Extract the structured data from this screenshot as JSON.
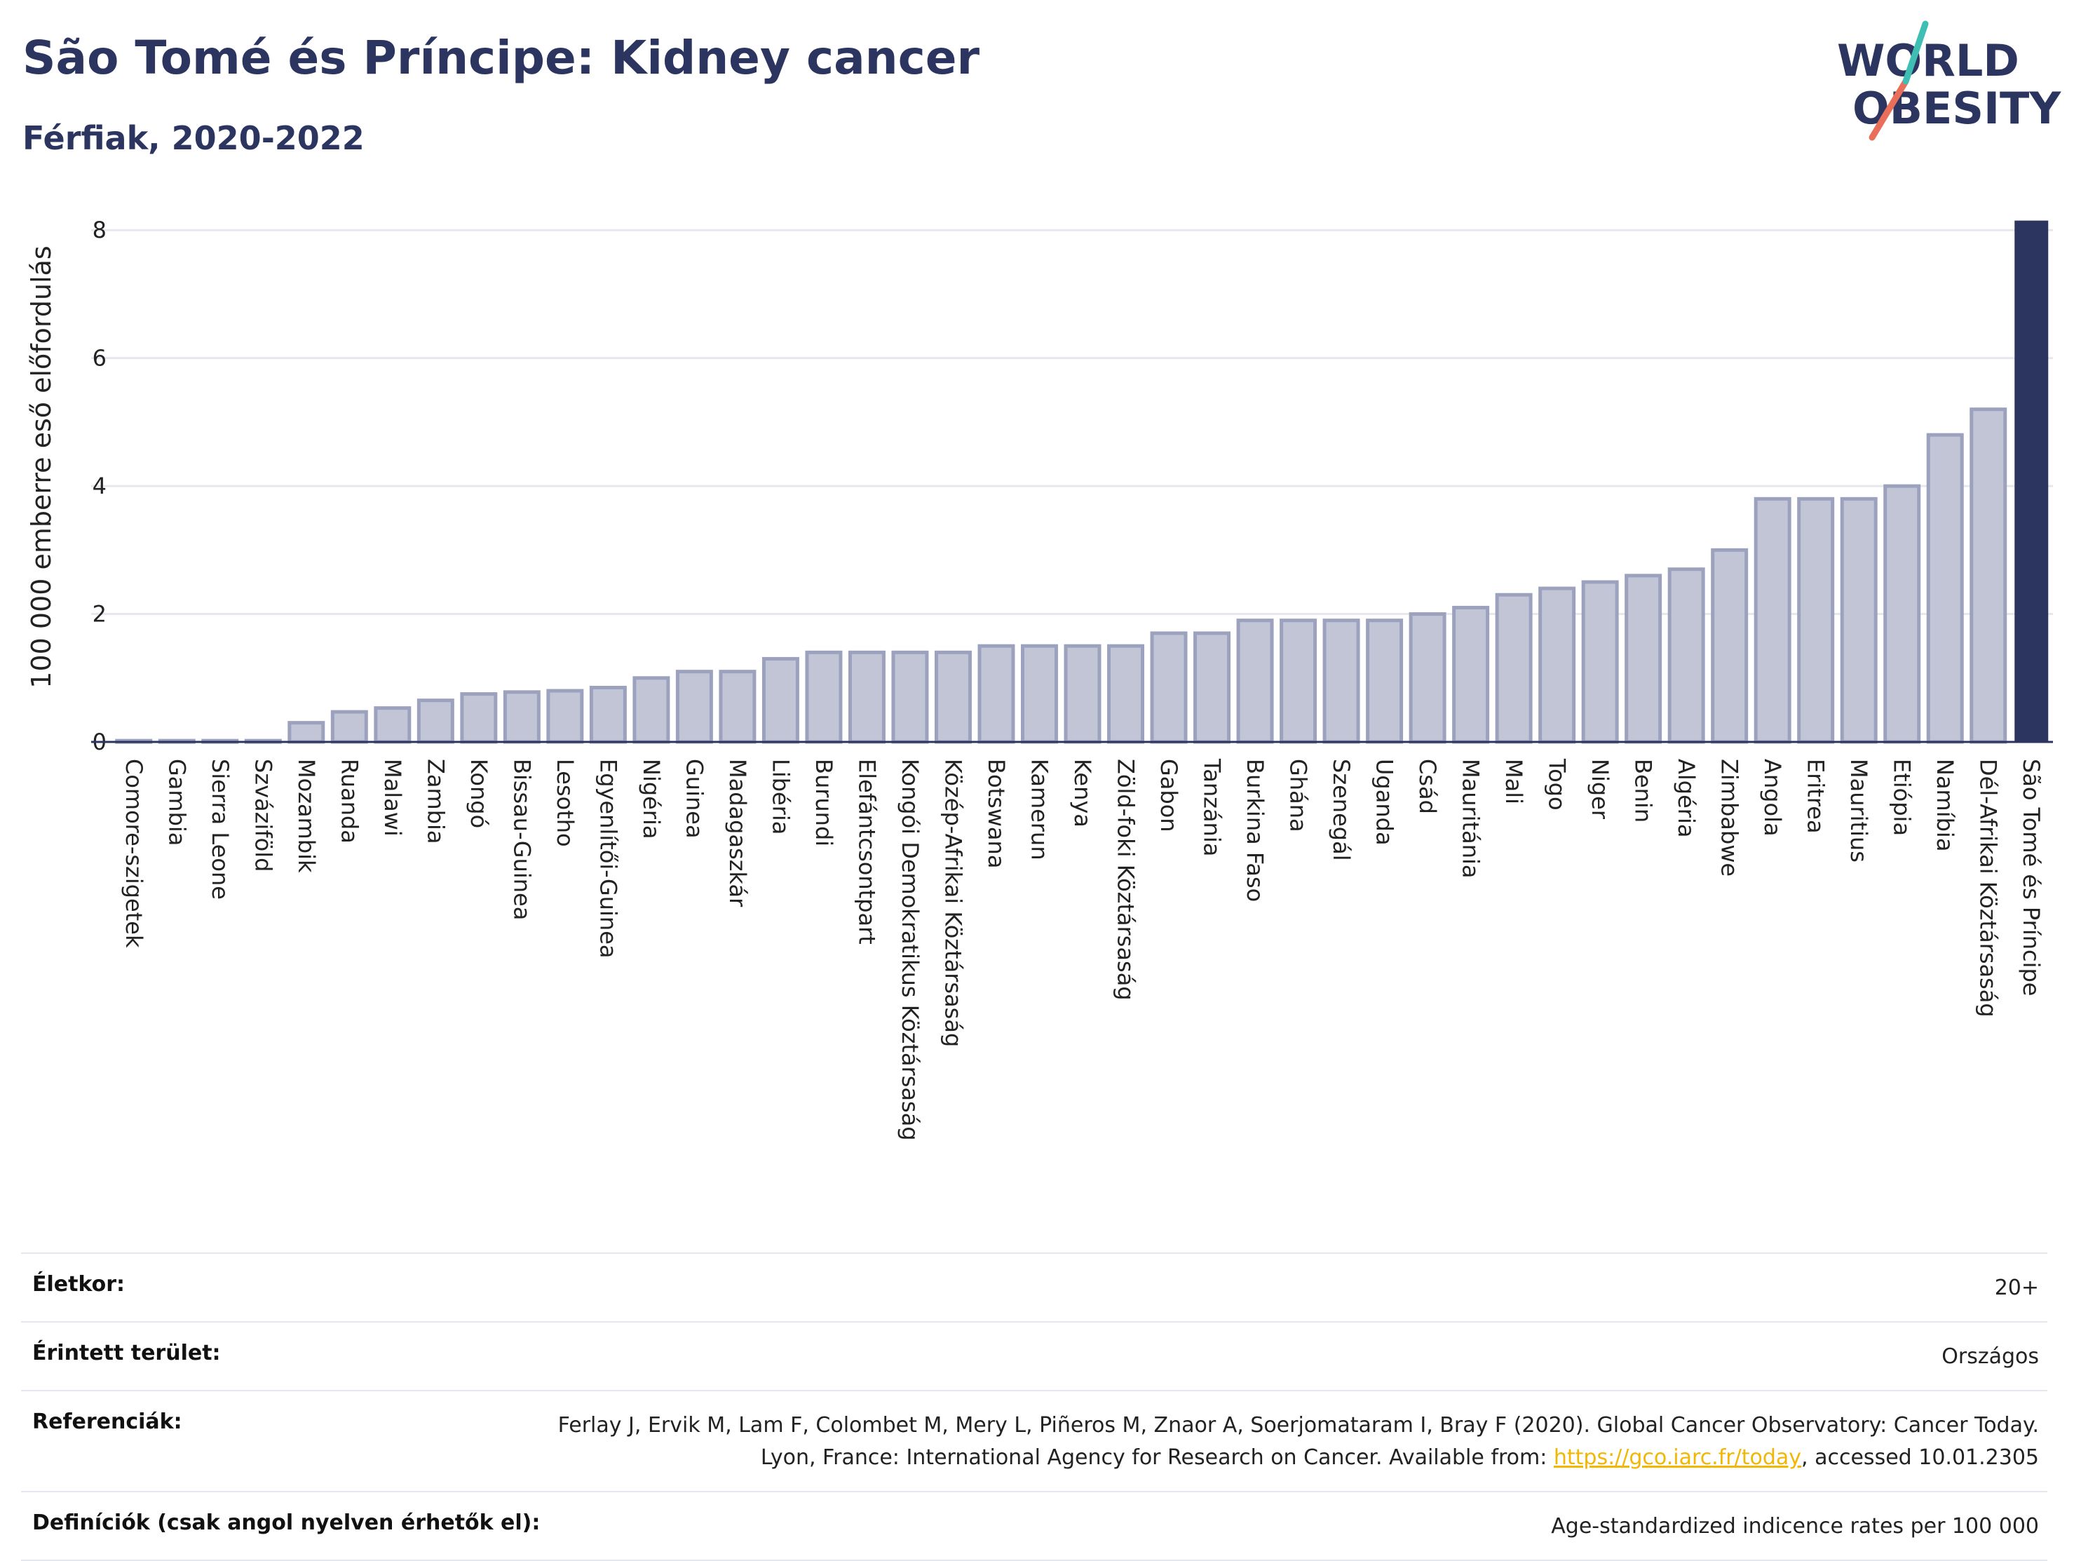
{
  "header": {
    "title": "São Tomé és Príncipe: Kidney cancer",
    "subtitle": "Férfiak, 2020-2022"
  },
  "logo": {
    "line1": "WORLD",
    "line2": "OBESITY"
  },
  "colors": {
    "title": "#2b3560",
    "bar_fill": "#c1c5d6",
    "bar_stroke": "#9ca2bd",
    "highlight": "#2b3560",
    "grid": "#e6e8ee"
  },
  "chart_data": {
    "type": "bar",
    "ylabel": "100 000 emberre eső előfordulás",
    "ylim": [
      0,
      8.2
    ],
    "yticks": [
      0,
      2,
      4,
      6,
      8
    ],
    "grid": true,
    "highlight": "São Tomé és Príncipe",
    "categories": [
      "Comore-szigetek",
      "Gambia",
      "Sierra Leone",
      "Szváziföld",
      "Mozambik",
      "Ruanda",
      "Malawi",
      "Zambia",
      "Kongó",
      "Bissau-Guinea",
      "Lesotho",
      "Egyenlítői-Guinea",
      "Nigéria",
      "Guinea",
      "Madagaszkár",
      "Libéria",
      "Burundi",
      "Elefántcsontpart",
      "Kongói Demokratikus Köztársaság",
      "Közép-Afrikai Köztársaság",
      "Botswana",
      "Kamerun",
      "Kenya",
      "Zöld-foki Köztársaság",
      "Gabon",
      "Tanzánia",
      "Burkina Faso",
      "Ghána",
      "Szenegál",
      "Uganda",
      "Csád",
      "Mauritánia",
      "Mali",
      "Togo",
      "Niger",
      "Benin",
      "Algéria",
      "Zimbabwe",
      "Angola",
      "Eritrea",
      "Mauritius",
      "Etiópia",
      "Namíbia",
      "Dél-Afrikai Köztársaság",
      "São Tomé és Príncipe"
    ],
    "values": [
      0.02,
      0.02,
      0.02,
      0.02,
      0.3,
      0.47,
      0.53,
      0.65,
      0.75,
      0.78,
      0.8,
      0.85,
      1.0,
      1.1,
      1.1,
      1.3,
      1.4,
      1.4,
      1.4,
      1.4,
      1.5,
      1.5,
      1.5,
      1.5,
      1.7,
      1.7,
      1.9,
      1.9,
      1.9,
      1.9,
      2.0,
      2.1,
      2.3,
      2.4,
      2.5,
      2.6,
      2.7,
      3.0,
      3.8,
      3.8,
      3.8,
      4.0,
      4.8,
      5.2,
      8.15
    ]
  },
  "info": [
    {
      "label": "Életkor:",
      "value": "20+"
    },
    {
      "label": "Érintett terület:",
      "value": "Országos"
    },
    {
      "label": "Referenciák:",
      "value": "Ferlay J, Ervik M, Lam F, Colombet M, Mery L, Piñeros M, Znaor A, Soerjomataram I, Bray F (2020). Global Cancer Observatory: Cancer Today. Lyon, France: International Agency for Research on Cancer. Available from:",
      "link": "https://gco.iarc.fr/today",
      "suffix": ", accessed 10.01.2305"
    },
    {
      "label": "Definíciók (csak angol nyelven érhetők el):",
      "value": "Age-standardized indicence rates per 100 000"
    }
  ]
}
